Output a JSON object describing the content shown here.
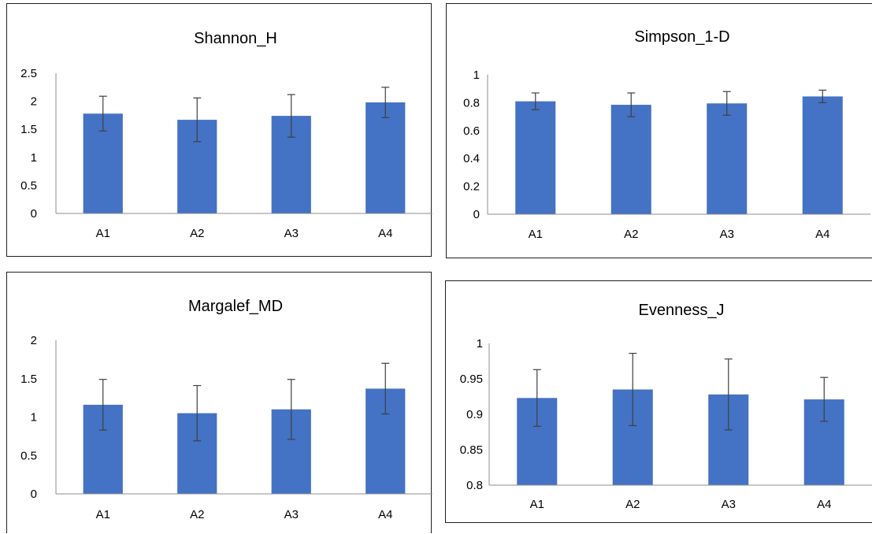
{
  "colors": {
    "bar": "#4472C4",
    "error_bar": "#404040",
    "axis": "#8C8C8C",
    "border": "#1F1F1F"
  },
  "chart_data": [
    {
      "type": "bar",
      "title": "Shannon_H",
      "categories": [
        "A1",
        "A2",
        "A3",
        "A4"
      ],
      "values": [
        1.78,
        1.67,
        1.74,
        1.98
      ],
      "errors": [
        0.31,
        0.39,
        0.38,
        0.27
      ],
      "ylim": [
        0,
        2.5
      ],
      "yticks": [
        "0",
        "0.5",
        "1",
        "1.5",
        "2",
        "2.5"
      ],
      "xlabel": "",
      "ylabel": "",
      "grid": false,
      "legend": "none"
    },
    {
      "type": "bar",
      "title": "Simpson_1-D",
      "categories": [
        "A1",
        "A2",
        "A3",
        "A4"
      ],
      "values": [
        0.81,
        0.785,
        0.795,
        0.845
      ],
      "errors": [
        0.06,
        0.085,
        0.085,
        0.045
      ],
      "ylim": [
        0,
        1
      ],
      "yticks": [
        "0",
        "0.2",
        "0.4",
        "0.6",
        "0.8",
        "1"
      ],
      "xlabel": "",
      "ylabel": "",
      "grid": false,
      "legend": "none"
    },
    {
      "type": "bar",
      "title": "Margalef_MD",
      "categories": [
        "A1",
        "A2",
        "A3",
        "A4"
      ],
      "values": [
        1.16,
        1.05,
        1.1,
        1.37
      ],
      "errors": [
        0.33,
        0.36,
        0.39,
        0.33
      ],
      "ylim": [
        0,
        2
      ],
      "yticks": [
        "0",
        "0.5",
        "1",
        "1.5",
        "2"
      ],
      "xlabel": "",
      "ylabel": "",
      "grid": false,
      "legend": "none"
    },
    {
      "type": "bar",
      "title": "Evenness_J",
      "categories": [
        "A1",
        "A2",
        "A3",
        "A4"
      ],
      "values": [
        0.923,
        0.935,
        0.928,
        0.921
      ],
      "errors": [
        0.04,
        0.051,
        0.05,
        0.031
      ],
      "ylim": [
        0.8,
        1
      ],
      "yticks": [
        "0.8",
        "0.85",
        "0.9",
        "0.95",
        "1"
      ],
      "xlabel": "",
      "ylabel": "",
      "grid": false,
      "legend": "none"
    }
  ]
}
